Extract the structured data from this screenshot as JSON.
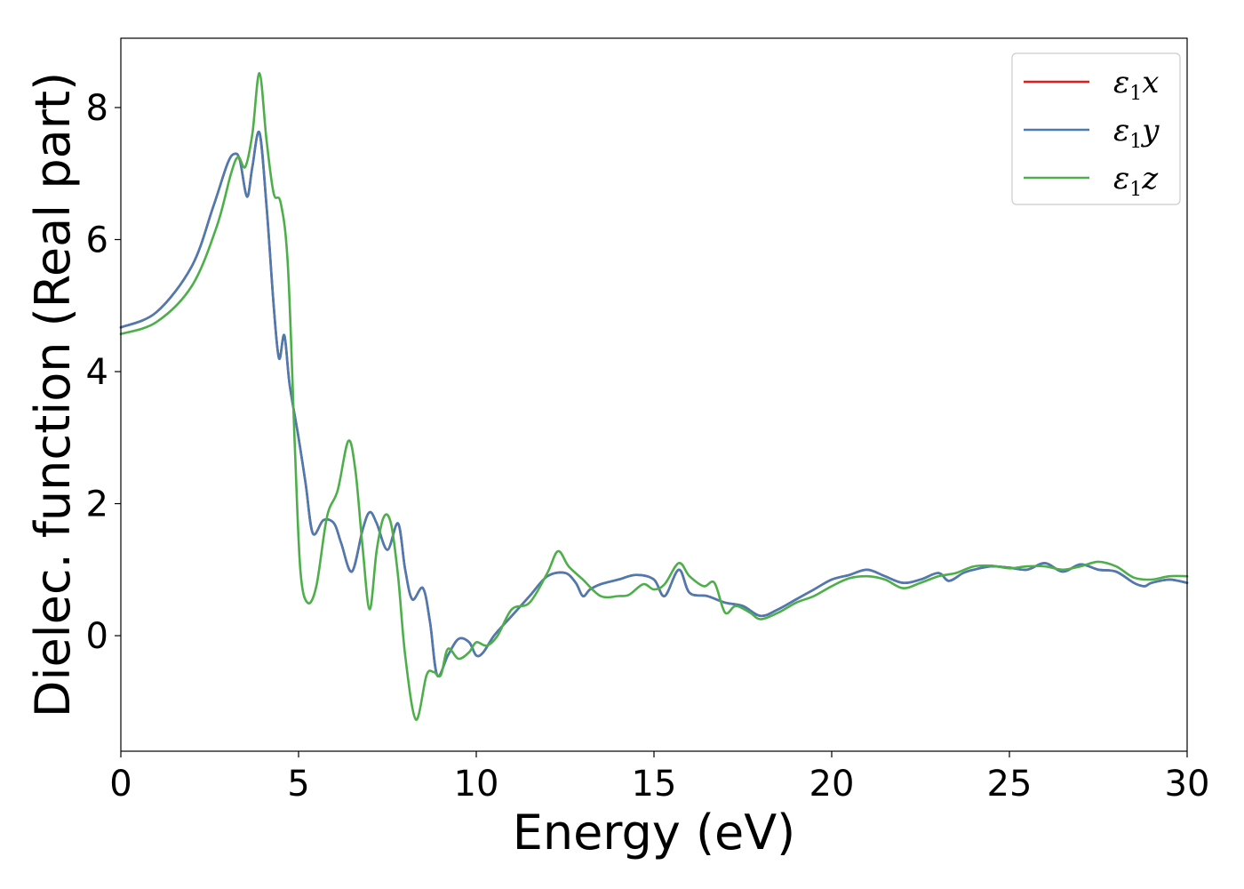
{
  "chart_data": {
    "type": "line",
    "xlabel": "Energy (eV)",
    "ylabel": "Dielec. function (Real part)",
    "xlim": [
      0,
      30
    ],
    "ylim": [
      -1.75,
      9.05
    ],
    "xticks": [
      0,
      5,
      10,
      15,
      20,
      25,
      30
    ],
    "xtick_labels": [
      "0",
      "5",
      "10",
      "15",
      "20",
      "25",
      "30"
    ],
    "yticks": [
      0,
      2,
      4,
      6,
      8
    ],
    "ytick_labels": [
      "0",
      "2",
      "4",
      "6",
      "8"
    ],
    "grid": false,
    "legend_position": "top-right",
    "series": [
      {
        "name": "ε1x",
        "legend_main": "ε",
        "legend_sub": "1",
        "legend_var": "x",
        "color": "#e41a1c",
        "x": [
          0,
          1,
          2,
          2.6,
          3.0,
          3.2,
          3.35,
          3.55,
          3.7,
          3.9,
          4.1,
          4.3,
          4.45,
          4.6,
          4.75,
          5.0,
          5.2,
          5.4,
          5.7,
          6.0,
          6.2,
          6.5,
          6.8,
          7.0,
          7.2,
          7.5,
          7.8,
          8.0,
          8.2,
          8.5,
          8.7,
          8.9,
          9.2,
          9.5,
          9.8,
          10.0,
          10.2,
          10.5,
          11.0,
          11.5,
          12.0,
          12.5,
          12.8,
          13.0,
          13.2,
          13.5,
          14.0,
          14.5,
          15.0,
          15.3,
          15.7,
          16.0,
          16.5,
          17.0,
          17.5,
          18.0,
          18.5,
          19.0,
          19.5,
          20.0,
          20.5,
          21.0,
          21.5,
          22.0,
          22.5,
          23.0,
          23.3,
          23.7,
          24.0,
          24.5,
          25.0,
          25.5,
          26.0,
          26.5,
          27.0,
          27.5,
          28.0,
          28.5,
          28.8,
          29.0,
          29.5,
          30.0
        ],
        "y": [
          4.67,
          4.9,
          5.6,
          6.5,
          7.15,
          7.3,
          7.2,
          6.65,
          7.1,
          7.62,
          6.5,
          5.0,
          4.2,
          4.55,
          3.8,
          3.0,
          2.3,
          1.55,
          1.75,
          1.7,
          1.4,
          0.97,
          1.6,
          1.87,
          1.7,
          1.3,
          1.7,
          1.0,
          0.55,
          0.72,
          0.2,
          -0.6,
          -0.3,
          -0.05,
          -0.1,
          -0.3,
          -0.25,
          0.0,
          0.3,
          0.6,
          0.9,
          0.95,
          0.8,
          0.6,
          0.7,
          0.78,
          0.85,
          0.92,
          0.85,
          0.6,
          1.0,
          0.65,
          0.6,
          0.5,
          0.45,
          0.3,
          0.4,
          0.55,
          0.7,
          0.85,
          0.92,
          1.0,
          0.9,
          0.8,
          0.85,
          0.95,
          0.83,
          0.95,
          1.0,
          1.05,
          1.03,
          1.0,
          1.1,
          0.97,
          1.08,
          1.0,
          0.97,
          0.8,
          0.75,
          0.8,
          0.85,
          0.8
        ]
      },
      {
        "name": "ε1y",
        "legend_main": "ε",
        "legend_sub": "1",
        "legend_var": "y",
        "color": "#4a7bb2",
        "x": [
          0,
          1,
          2,
          2.6,
          3.0,
          3.2,
          3.35,
          3.55,
          3.7,
          3.9,
          4.1,
          4.3,
          4.45,
          4.6,
          4.75,
          5.0,
          5.2,
          5.4,
          5.7,
          6.0,
          6.2,
          6.5,
          6.8,
          7.0,
          7.2,
          7.5,
          7.8,
          8.0,
          8.2,
          8.5,
          8.7,
          8.9,
          9.2,
          9.5,
          9.8,
          10.0,
          10.2,
          10.5,
          11.0,
          11.5,
          12.0,
          12.5,
          12.8,
          13.0,
          13.2,
          13.5,
          14.0,
          14.5,
          15.0,
          15.3,
          15.7,
          16.0,
          16.5,
          17.0,
          17.5,
          18.0,
          18.5,
          19.0,
          19.5,
          20.0,
          20.5,
          21.0,
          21.5,
          22.0,
          22.5,
          23.0,
          23.3,
          23.7,
          24.0,
          24.5,
          25.0,
          25.5,
          26.0,
          26.5,
          27.0,
          27.5,
          28.0,
          28.5,
          28.8,
          29.0,
          29.5,
          30.0
        ],
        "y": [
          4.67,
          4.9,
          5.6,
          6.5,
          7.15,
          7.3,
          7.2,
          6.65,
          7.1,
          7.62,
          6.5,
          5.0,
          4.2,
          4.55,
          3.8,
          3.0,
          2.3,
          1.55,
          1.75,
          1.7,
          1.4,
          0.97,
          1.6,
          1.87,
          1.7,
          1.3,
          1.7,
          1.0,
          0.55,
          0.72,
          0.2,
          -0.6,
          -0.3,
          -0.05,
          -0.1,
          -0.3,
          -0.25,
          0.0,
          0.3,
          0.6,
          0.9,
          0.95,
          0.8,
          0.6,
          0.7,
          0.78,
          0.85,
          0.92,
          0.85,
          0.6,
          1.0,
          0.65,
          0.6,
          0.5,
          0.45,
          0.3,
          0.4,
          0.55,
          0.7,
          0.85,
          0.92,
          1.0,
          0.9,
          0.8,
          0.85,
          0.95,
          0.83,
          0.95,
          1.0,
          1.05,
          1.03,
          1.0,
          1.1,
          0.97,
          1.08,
          1.0,
          0.97,
          0.8,
          0.75,
          0.8,
          0.85,
          0.8
        ]
      },
      {
        "name": "ε1z",
        "legend_main": "ε",
        "legend_sub": "1",
        "legend_var": "z",
        "color": "#4daf4a",
        "x": [
          0,
          1,
          2,
          2.7,
          3.1,
          3.3,
          3.5,
          3.7,
          3.9,
          4.1,
          4.3,
          4.5,
          4.7,
          4.9,
          5.05,
          5.25,
          5.5,
          5.8,
          6.1,
          6.4,
          6.6,
          6.8,
          7.0,
          7.2,
          7.4,
          7.6,
          7.8,
          8.0,
          8.3,
          8.6,
          8.8,
          9.0,
          9.2,
          9.5,
          9.8,
          10.0,
          10.3,
          10.6,
          11.0,
          11.5,
          12.0,
          12.3,
          12.6,
          13.0,
          13.5,
          14.0,
          14.3,
          14.7,
          15.0,
          15.3,
          15.7,
          16.0,
          16.4,
          16.7,
          17.0,
          17.3,
          17.7,
          18.0,
          18.5,
          19.0,
          19.5,
          20.0,
          20.5,
          21.0,
          21.5,
          22.0,
          22.5,
          23.0,
          23.5,
          24.0,
          24.5,
          25.0,
          25.5,
          26.0,
          26.5,
          27.0,
          27.5,
          28.0,
          28.5,
          29.0,
          29.5,
          30.0
        ],
        "y": [
          4.57,
          4.75,
          5.3,
          6.2,
          7.0,
          7.25,
          7.1,
          7.6,
          8.52,
          7.5,
          6.7,
          6.55,
          5.6,
          2.8,
          1.0,
          0.5,
          0.75,
          1.8,
          2.2,
          2.95,
          2.5,
          1.35,
          0.4,
          1.3,
          1.8,
          1.7,
          0.9,
          -0.3,
          -1.27,
          -0.6,
          -0.55,
          -0.6,
          -0.2,
          -0.35,
          -0.25,
          -0.1,
          -0.15,
          0.0,
          0.4,
          0.5,
          0.95,
          1.28,
          1.05,
          0.85,
          0.6,
          0.6,
          0.62,
          0.78,
          0.7,
          0.78,
          1.1,
          0.9,
          0.75,
          0.8,
          0.35,
          0.45,
          0.35,
          0.25,
          0.35,
          0.5,
          0.6,
          0.75,
          0.87,
          0.9,
          0.85,
          0.72,
          0.8,
          0.9,
          0.95,
          1.05,
          1.06,
          1.02,
          1.05,
          1.05,
          1.0,
          1.05,
          1.12,
          1.05,
          0.88,
          0.85,
          0.9,
          0.9
        ]
      }
    ]
  }
}
